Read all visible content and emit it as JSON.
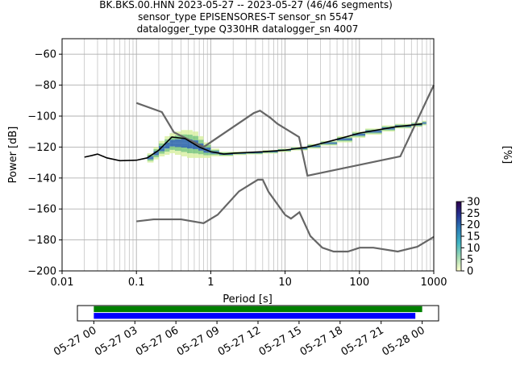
{
  "title": {
    "line1": "BK.BKS.00.HNN   2023-05-27 -- 2023-05-27  (46/46 segments)",
    "line2": "sensor_type EPISENSORES-T sensor_sn 5547",
    "line3": "datalogger_type Q330HR datalogger_sn 4007"
  },
  "colorbar": {
    "label": "[%]",
    "ticks": [
      "0",
      "5",
      "10",
      "15",
      "20",
      "25",
      "30"
    ],
    "range": [
      0,
      30
    ],
    "colors": [
      "#ffffcc",
      "#a1dab4",
      "#41b6c4",
      "#2c7fb8",
      "#253494",
      "#2d004b"
    ]
  },
  "chart_data": [
    {
      "type": "line",
      "xlabel": "Period [s]",
      "ylabel": "Power [dB]",
      "xscale": "log",
      "xlim": [
        0.01,
        1000
      ],
      "ylim": [
        -200,
        -50
      ],
      "grid": true,
      "x_tick_labels": [
        "0.01",
        "0.1",
        "1",
        "10",
        "100",
        "1000"
      ],
      "y_tick_labels": [
        "−60",
        "−80",
        "−100",
        "−120",
        "−140",
        "−160",
        "−180",
        "−200"
      ],
      "x_ticks": [
        0.01,
        0.1,
        1,
        10,
        100,
        1000
      ],
      "y_ticks": [
        -60,
        -80,
        -100,
        -120,
        -140,
        -160,
        -180,
        -200
      ],
      "series": [
        {
          "role": "noise-model-high",
          "color": "#666666",
          "x": [
            0.1,
            0.22,
            0.32,
            0.8,
            3.8,
            4.6,
            6.3,
            7.9,
            15.4,
            20,
            354.8,
            10000
          ],
          "y": [
            -91.5,
            -97.4,
            -110.5,
            -120,
            -98,
            -96.5,
            -101,
            -105,
            -113.5,
            -138.5,
            -126,
            -80
          ]
        },
        {
          "role": "noise-model-low",
          "color": "#666666",
          "x": [
            0.1,
            0.17,
            0.4,
            0.8,
            1.24,
            2.4,
            4.3,
            5,
            6,
            10,
            12,
            15.6,
            21.9,
            31.6,
            45,
            70,
            101,
            154,
            328,
            600,
            1000
          ],
          "y": [
            -168,
            -166.7,
            -166.7,
            -169.2,
            -163.7,
            -148.6,
            -141.1,
            -141.1,
            -149,
            -163.8,
            -166.2,
            -162.1,
            -177.5,
            -185,
            -187.5,
            -187.5,
            -185,
            -185,
            -187.5,
            -184.4,
            -178
          ]
        },
        {
          "role": "mode",
          "color": "#000000",
          "x": [
            0.02,
            0.025,
            0.03,
            0.04,
            0.06,
            0.1,
            0.14,
            0.2,
            0.3,
            0.45,
            0.7,
            1,
            1.5,
            2,
            3,
            5,
            10,
            20,
            50,
            100,
            300,
            700
          ],
          "y": [
            -126.5,
            -125.5,
            -124.5,
            -127,
            -128.8,
            -128.5,
            -127,
            -122,
            -113.5,
            -114.5,
            -120,
            -123,
            -124.5,
            -124,
            -123.5,
            -123,
            -122,
            -120,
            -115,
            -111,
            -107,
            -105
          ]
        }
      ],
      "histogram": {
        "x": [
          0.14,
          0.17,
          0.2,
          0.24,
          0.28,
          0.33,
          0.4,
          0.48,
          0.57,
          0.68,
          0.8,
          1,
          1.3,
          2,
          3,
          5,
          8,
          12,
          20,
          30,
          50,
          80,
          120,
          200,
          300,
          500,
          700
        ],
        "y_low": [
          -130,
          -128,
          -126,
          -125,
          -124,
          -125,
          -126,
          -127,
          -127,
          -127,
          -127,
          -126,
          -126,
          -125,
          -124.5,
          -124,
          -123,
          -122,
          -121,
          -119,
          -117,
          -114,
          -112,
          -110,
          -108,
          -107,
          -106
        ],
        "y_high": [
          -124,
          -120,
          -116,
          -113,
          -111,
          -110,
          -109,
          -109,
          -110,
          -113,
          -117,
          -121,
          -123,
          -123,
          -123,
          -122,
          -121,
          -120,
          -118,
          -116,
          -113,
          -110,
          -108,
          -106,
          -105,
          -104,
          -103
        ]
      }
    },
    {
      "type": "timeline",
      "x_tick_labels": [
        "05-27 00",
        "05-27 03",
        "05-27 06",
        "05-27 09",
        "05-27 12",
        "05-27 15",
        "05-27 18",
        "05-27 21",
        "05-28 00"
      ],
      "x_ticks_hours": [
        0,
        3,
        6,
        9,
        12,
        15,
        18,
        21,
        24
      ],
      "xlim_hours": [
        -1.2,
        25.2
      ],
      "bars": [
        {
          "color": "#008000",
          "start_hours": 0,
          "end_hours": 24
        },
        {
          "color": "#0000ff",
          "start_hours": 0,
          "end_hours": 23.5
        }
      ]
    }
  ]
}
